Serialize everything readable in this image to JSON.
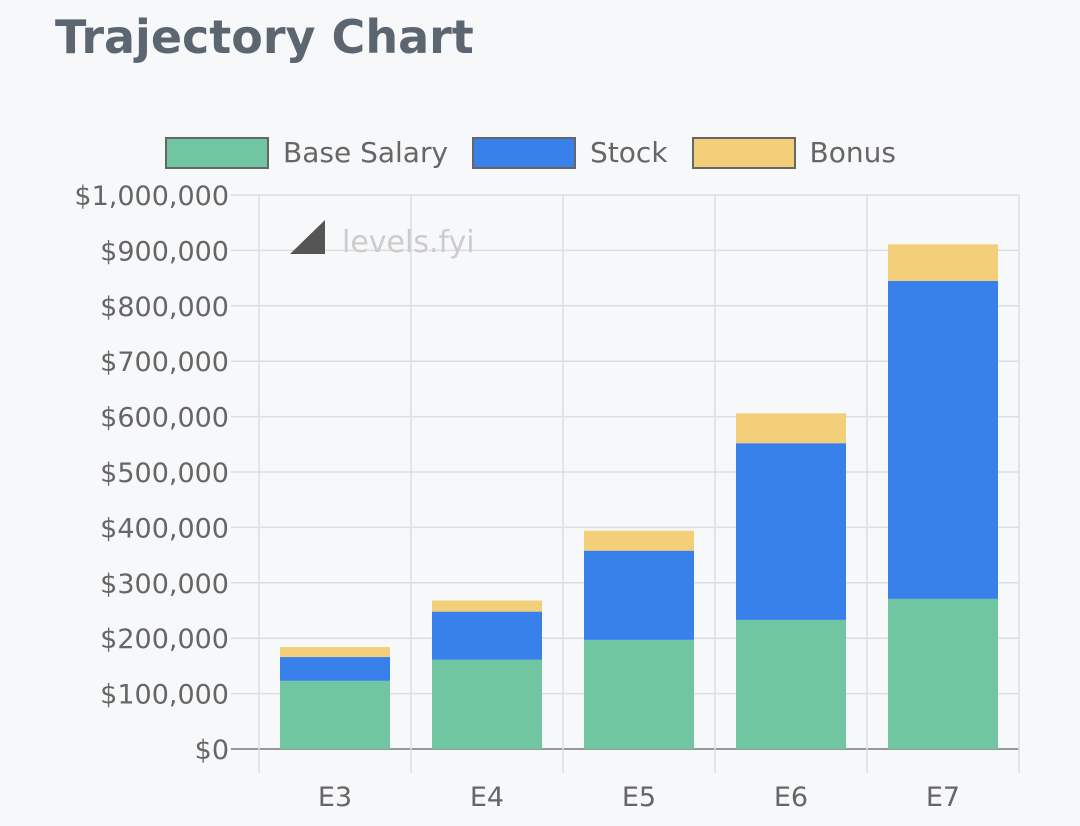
{
  "title": "Trajectory Chart",
  "watermark": "levels.fyi",
  "chart_data": {
    "type": "bar",
    "stacked": true,
    "title": "Trajectory Chart",
    "categories": [
      "E3",
      "E4",
      "E5",
      "E6",
      "E7"
    ],
    "series": [
      {
        "name": "Base Salary",
        "color": "#6fc6a0",
        "values": [
          123000,
          161000,
          197000,
          233000,
          271000
        ]
      },
      {
        "name": "Stock",
        "color": "#3880ea",
        "values": [
          43000,
          87000,
          161000,
          319000,
          574000
        ]
      },
      {
        "name": "Bonus",
        "color": "#f2cf78",
        "values": [
          18000,
          20000,
          36000,
          54000,
          66000
        ]
      }
    ],
    "ylim": [
      0,
      1000000
    ],
    "yticks": [
      "$0",
      "$100,000",
      "$200,000",
      "$300,000",
      "$400,000",
      "$500,000",
      "$600,000",
      "$700,000",
      "$800,000",
      "$900,000",
      "$1,000,000"
    ],
    "xlabel": "",
    "ylabel": "",
    "legend": "top",
    "grid": true
  }
}
